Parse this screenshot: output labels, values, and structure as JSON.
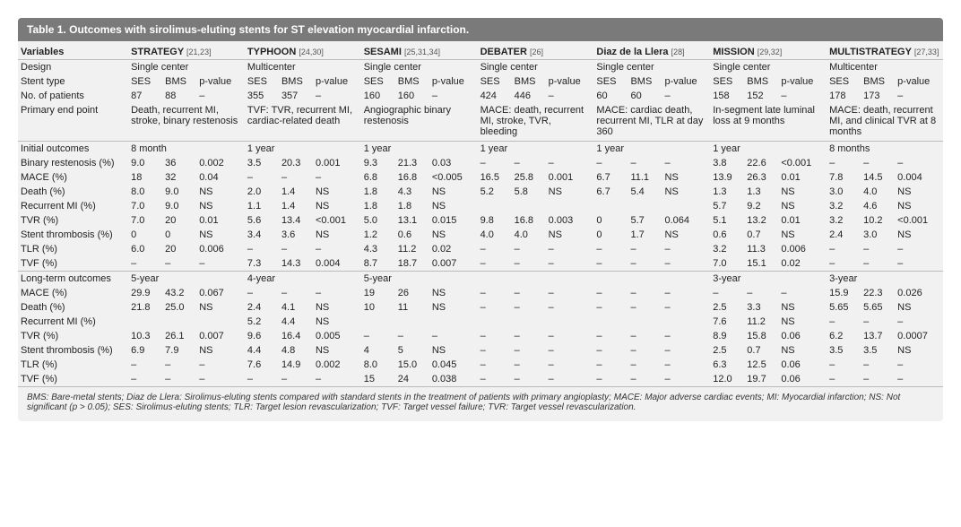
{
  "title": "Table 1. Outcomes with sirolimus-eluting stents for ST elevation myocardial infarction.",
  "colhdr": {
    "variables": "Variables",
    "ses": "SES",
    "bms": "BMS",
    "pvalue": "p-value"
  },
  "studies": {
    "strategy": {
      "name": "STRATEGY",
      "ref": "[21,23]",
      "design": "Single center",
      "n_ses": "87",
      "n_bms": "88",
      "n_p": "–",
      "stent": "SES"
    },
    "typhoon": {
      "name": "TYPHOON",
      "ref": "[24,30]",
      "design": "Multicenter",
      "n_ses": "355",
      "n_bms": "357",
      "n_p": "–",
      "stent": "SES"
    },
    "sesami": {
      "name": "SESAMI",
      "ref": "[25,31,34]",
      "design": "Single center",
      "n_ses": "160",
      "n_bms": "160",
      "n_p": "–",
      "stent": "SES"
    },
    "debater": {
      "name": "DEBATER",
      "ref": "[26]",
      "design": "Single center",
      "n_ses": "424",
      "n_bms": "446",
      "n_p": "–",
      "stent": "SES"
    },
    "diaz": {
      "name": "Diaz de la Llera",
      "ref": "[28]",
      "design": "Single center",
      "n_ses": "60",
      "n_bms": "60",
      "n_p": "–",
      "stent": "SES"
    },
    "mission": {
      "name": "MISSION",
      "ref": "[29,32]",
      "design": "Single center",
      "n_ses": "158",
      "n_bms": "152",
      "n_p": "–",
      "stent": "SES"
    },
    "multistrategy": {
      "name": "MULTISTRATEGY",
      "ref": "[27,33]",
      "design": "Multicenter",
      "n_ses": "178",
      "n_bms": "173",
      "n_p": "–",
      "stent": "SES"
    }
  },
  "rowlabels": {
    "design": "Design",
    "stenttype": "Stent type",
    "npatients": "No. of patients",
    "pep": "Primary end point",
    "initial": "Initial outcomes",
    "binrest": "Binary restenosis (%)",
    "mace": "MACE (%)",
    "death": "Death (%)",
    "recmi": "Recurrent MI (%)",
    "tvr": "TVR (%)",
    "stth": "Stent thrombosis (%)",
    "tlr": "TLR (%)",
    "tvf": "TVF (%)",
    "longterm": "Long-term outcomes"
  },
  "pep": {
    "strategy": "Death, recurrent MI, stroke, binary restenosis",
    "typhoon": "TVF: TVR, recurrent MI, cardiac-related death",
    "sesami": "Angiographic binary restenosis",
    "debater": "MACE: death, recurrent MI, stroke, TVR, bleeding",
    "diaz": "MACE: cardiac death, recurrent MI, TLR at day 360",
    "mission": "In-segment late luminal loss at 9 months",
    "multistrategy": "MACE: death, recurrent MI, and clinical TVR at 8 months"
  },
  "initial_time": {
    "strategy": "8 month",
    "typhoon": "1 year",
    "sesami": "1 year",
    "debater": "1 year",
    "diaz": "1 year",
    "mission": "1 year",
    "multistrategy": "8 months"
  },
  "longterm_time": {
    "strategy": "5-year",
    "typhoon": "4-year",
    "sesami": "5-year",
    "debater": "",
    "diaz": "",
    "mission": "3-year",
    "multistrategy": "3-year"
  },
  "i": {
    "binrest": {
      "strategy": [
        "9.0",
        "36",
        "0.002"
      ],
      "typhoon": [
        "3.5",
        "20.3",
        "0.001"
      ],
      "sesami": [
        "9.3",
        "21.3",
        "0.03"
      ],
      "debater": [
        "–",
        "–",
        "–"
      ],
      "diaz": [
        "–",
        "–",
        "–"
      ],
      "mission": [
        "3.8",
        "22.6",
        "<0.001"
      ],
      "multistrategy": [
        "–",
        "–",
        "–"
      ]
    },
    "mace": {
      "strategy": [
        "18",
        "32",
        "0.04"
      ],
      "typhoon": [
        "–",
        "–",
        "–"
      ],
      "sesami": [
        "6.8",
        "16.8",
        "<0.005"
      ],
      "debater": [
        "16.5",
        "25.8",
        "0.001"
      ],
      "diaz": [
        "6.7",
        "11.1",
        "NS"
      ],
      "mission": [
        "13.9",
        "26.3",
        "0.01"
      ],
      "multistrategy": [
        "7.8",
        "14.5",
        "0.004"
      ]
    },
    "death": {
      "strategy": [
        "8.0",
        "9.0",
        "NS"
      ],
      "typhoon": [
        "2.0",
        "1.4",
        "NS"
      ],
      "sesami": [
        "1.8",
        "4.3",
        "NS"
      ],
      "debater": [
        "5.2",
        "5.8",
        "NS"
      ],
      "diaz": [
        "6.7",
        "5.4",
        "NS"
      ],
      "mission": [
        "1.3",
        "1.3",
        "NS"
      ],
      "multistrategy": [
        "3.0",
        "4.0",
        "NS"
      ]
    },
    "recmi": {
      "strategy": [
        "7.0",
        "9.0",
        "NS"
      ],
      "typhoon": [
        "1.1",
        "1.4",
        "NS"
      ],
      "sesami": [
        "1.8",
        "1.8",
        "NS"
      ],
      "debater": [
        "",
        "",
        ""
      ],
      "diaz": [
        "",
        "",
        ""
      ],
      "mission": [
        "5.7",
        "9.2",
        "NS"
      ],
      "multistrategy": [
        "3.2",
        "4.6",
        "NS"
      ]
    },
    "tvr": {
      "strategy": [
        "7.0",
        "20",
        "0.01"
      ],
      "typhoon": [
        "5.6",
        "13.4",
        "<0.001"
      ],
      "sesami": [
        "5.0",
        "13.1",
        "0.015"
      ],
      "debater": [
        "9.8",
        "16.8",
        "0.003"
      ],
      "diaz": [
        "0",
        "5.7",
        "0.064"
      ],
      "mission": [
        "5.1",
        "13.2",
        "0.01"
      ],
      "multistrategy": [
        "3.2",
        "10.2",
        "<0.001"
      ]
    },
    "stth": {
      "strategy": [
        "0",
        "0",
        "NS"
      ],
      "typhoon": [
        "3.4",
        "3.6",
        "NS"
      ],
      "sesami": [
        "1.2",
        "0.6",
        "NS"
      ],
      "debater": [
        "4.0",
        "4.0",
        "NS"
      ],
      "diaz": [
        "0",
        "1.7",
        "NS"
      ],
      "mission": [
        "0.6",
        "0.7",
        "NS"
      ],
      "multistrategy": [
        "2.4",
        "3.0",
        "NS"
      ]
    },
    "tlr": {
      "strategy": [
        "6.0",
        "20",
        "0.006"
      ],
      "typhoon": [
        "–",
        "–",
        "–"
      ],
      "sesami": [
        "4.3",
        "11.2",
        "0.02"
      ],
      "debater": [
        "–",
        "–",
        "–"
      ],
      "diaz": [
        "–",
        "–",
        "–"
      ],
      "mission": [
        "3.2",
        "11.3",
        "0.006"
      ],
      "multistrategy": [
        "–",
        "–",
        "–"
      ]
    },
    "tvf": {
      "strategy": [
        "–",
        "–",
        "–"
      ],
      "typhoon": [
        "7.3",
        "14.3",
        "0.004"
      ],
      "sesami": [
        "8.7",
        "18.7",
        "0.007"
      ],
      "debater": [
        "–",
        "–",
        "–"
      ],
      "diaz": [
        "–",
        "–",
        "–"
      ],
      "mission": [
        "7.0",
        "15.1",
        "0.02"
      ],
      "multistrategy": [
        "–",
        "–",
        "–"
      ]
    }
  },
  "l": {
    "mace": {
      "strategy": [
        "29.9",
        "43.2",
        "0.067"
      ],
      "typhoon": [
        "–",
        "–",
        "–"
      ],
      "sesami": [
        "19",
        "26",
        "NS"
      ],
      "debater": [
        "–",
        "–",
        "–"
      ],
      "diaz": [
        "–",
        "–",
        "–"
      ],
      "mission": [
        "–",
        "–",
        "–"
      ],
      "multistrategy": [
        "15.9",
        "22.3",
        "0.026"
      ]
    },
    "death": {
      "strategy": [
        "21.8",
        "25.0",
        "NS"
      ],
      "typhoon": [
        "2.4",
        "4.1",
        "NS"
      ],
      "sesami": [
        "10",
        "11",
        "NS"
      ],
      "debater": [
        "–",
        "–",
        "–"
      ],
      "diaz": [
        "–",
        "–",
        "–"
      ],
      "mission": [
        "2.5",
        "3.3",
        "NS"
      ],
      "multistrategy": [
        "5.65",
        "5.65",
        "NS"
      ]
    },
    "recmi": {
      "strategy": [
        "",
        "",
        ""
      ],
      "typhoon": [
        "5.2",
        "4.4",
        "NS"
      ],
      "sesami": [
        "",
        "",
        ""
      ],
      "debater": [
        "",
        "",
        ""
      ],
      "diaz": [
        "",
        "",
        ""
      ],
      "mission": [
        "7.6",
        "11.2",
        "NS"
      ],
      "multistrategy": [
        "–",
        "–",
        "–"
      ]
    },
    "tvr": {
      "strategy": [
        "10.3",
        "26.1",
        "0.007"
      ],
      "typhoon": [
        "9.6",
        "16.4",
        "0.005"
      ],
      "sesami": [
        "–",
        "–",
        "–"
      ],
      "debater": [
        "–",
        "–",
        "–"
      ],
      "diaz": [
        "–",
        "–",
        "–"
      ],
      "mission": [
        "8.9",
        "15.8",
        "0.06"
      ],
      "multistrategy": [
        "6.2",
        "13.7",
        "0.0007"
      ]
    },
    "stth": {
      "strategy": [
        "6.9",
        "7.9",
        "NS"
      ],
      "typhoon": [
        "4.4",
        "4.8",
        "NS"
      ],
      "sesami": [
        "4",
        "5",
        "NS"
      ],
      "debater": [
        "–",
        "–",
        "–"
      ],
      "diaz": [
        "–",
        "–",
        "–"
      ],
      "mission": [
        "2.5",
        "0.7",
        "NS"
      ],
      "multistrategy": [
        "3.5",
        "3.5",
        "NS"
      ]
    },
    "tlr": {
      "strategy": [
        "–",
        "–",
        "–"
      ],
      "typhoon": [
        "7.6",
        "14.9",
        "0.002"
      ],
      "sesami": [
        "8.0",
        "15.0",
        "0.045"
      ],
      "debater": [
        "–",
        "–",
        "–"
      ],
      "diaz": [
        "–",
        "–",
        "–"
      ],
      "mission": [
        "6.3",
        "12.5",
        "0.06"
      ],
      "multistrategy": [
        "–",
        "–",
        "–"
      ]
    },
    "tvf": {
      "strategy": [
        "–",
        "–",
        "–"
      ],
      "typhoon": [
        "–",
        "–",
        "–"
      ],
      "sesami": [
        "15",
        "24",
        "0.038"
      ],
      "debater": [
        "–",
        "–",
        "–"
      ],
      "diaz": [
        "–",
        "–",
        "–"
      ],
      "mission": [
        "12.0",
        "19.7",
        "0.06"
      ],
      "multistrategy": [
        "–",
        "–",
        "–"
      ]
    }
  },
  "footnote": "BMS: Bare-metal stents; Diaz de Llera: Sirolimus-eluting stents compared with standard stents in the treatment of patients with primary angioplasty; MACE: Major adverse cardiac events; MI: Myocardial infarction; NS: Not significant (p > 0.05); SES: Sirolimus-eluting stents; TLR: Target lesion revascularization; TVF: Target vessel failure; TVR: Target vessel revascularization.",
  "colors": {
    "header_bg": "#7a7a7a",
    "body_bg": "#f1f1f2",
    "border": "#bbbbbb",
    "text": "#222222"
  }
}
